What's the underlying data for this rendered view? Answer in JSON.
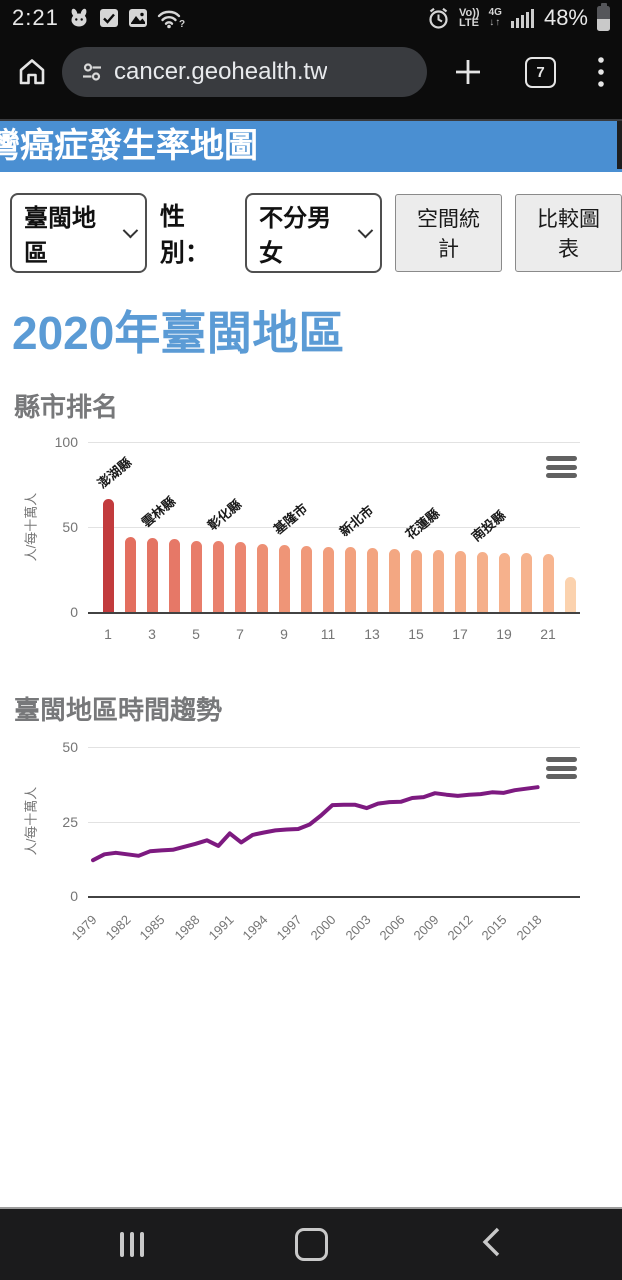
{
  "status_bar": {
    "time": "2:21",
    "icons_left": [
      "mascot-icon",
      "checkbox-icon",
      "gallery-icon",
      "wifi-question-icon"
    ],
    "icons_right": [
      "alarm-icon",
      "volte-icon",
      "network-arrows-icon",
      "signal-icon",
      "battery-icon"
    ],
    "volte_line1": "Vo))",
    "volte_line2": "LTE",
    "network": "4G",
    "network_arrows": "↓↑",
    "battery_percent": "48%"
  },
  "browser": {
    "url": "cancer.geohealth.tw",
    "tab_count": "7"
  },
  "site_header": {
    "title": "灣癌症發生率地圖"
  },
  "controls": {
    "region_select": "臺閩地區",
    "gender_label": "性別：",
    "gender_select": "不分男女",
    "spatial_stats_button": "空間統計",
    "comparison_chart_button": "比較圖表"
  },
  "main": {
    "page_title": "2020年臺閩地區",
    "ranking_section_title": "縣市排名",
    "trend_section_title": "臺閩地區時間趨勢"
  },
  "chart_data": [
    {
      "type": "bar",
      "title": "縣市排名",
      "ylabel": "人/每十萬人",
      "ylim": [
        0,
        100
      ],
      "yticks": [
        0,
        50,
        100
      ],
      "categories": [
        1,
        2,
        3,
        4,
        5,
        6,
        7,
        8,
        9,
        10,
        11,
        12,
        13,
        14,
        15,
        16,
        17,
        18,
        19,
        20,
        21,
        22
      ],
      "xticks": [
        1,
        3,
        5,
        7,
        9,
        11,
        13,
        15,
        17,
        19,
        21
      ],
      "values": [
        66.5,
        44,
        43.5,
        43,
        42,
        41.5,
        41,
        40,
        39.5,
        39,
        38.5,
        38,
        37.5,
        37,
        36.5,
        36.5,
        36,
        35.5,
        35,
        34.5,
        34,
        20.5
      ],
      "bar_colors": [
        "#c23b3d",
        "#e36f5f",
        "#e47463",
        "#e67867",
        "#e87d6a",
        "#e9816d",
        "#eb8670",
        "#ed8f74",
        "#ef9577",
        "#f0997a",
        "#f19d7c",
        "#f2a17e",
        "#f3a480",
        "#f3a782",
        "#f4a984",
        "#f4ab86",
        "#f5ad88",
        "#f5af8a",
        "#f6b18c",
        "#f6b38e",
        "#f7b590",
        "#fbd2ae"
      ],
      "annotations": [
        {
          "index": 1,
          "label": "澎湖縣"
        },
        {
          "index": 3,
          "label": "雲林縣"
        },
        {
          "index": 6,
          "label": "彰化縣"
        },
        {
          "index": 9,
          "label": "基隆市"
        },
        {
          "index": 12,
          "label": "新北市"
        },
        {
          "index": 15,
          "label": "花蓮縣"
        },
        {
          "index": 18,
          "label": "南投縣"
        }
      ],
      "grid": true,
      "legend": "none"
    },
    {
      "type": "line",
      "title": "臺閩地區時間趨勢",
      "ylabel": "人/每十萬人",
      "ylim": [
        0,
        50
      ],
      "yticks": [
        0,
        25,
        50
      ],
      "x": [
        1979,
        1980,
        1981,
        1982,
        1983,
        1984,
        1985,
        1986,
        1987,
        1988,
        1989,
        1990,
        1991,
        1992,
        1993,
        1994,
        1995,
        1996,
        1997,
        1998,
        1999,
        2000,
        2001,
        2002,
        2003,
        2004,
        2005,
        2006,
        2007,
        2008,
        2009,
        2010,
        2011,
        2012,
        2013,
        2014,
        2015,
        2016,
        2017,
        2018
      ],
      "xticks": [
        1979,
        1982,
        1985,
        1988,
        1991,
        1994,
        1997,
        2000,
        2003,
        2006,
        2009,
        2012,
        2015,
        2018
      ],
      "values": [
        12,
        14,
        14.5,
        14,
        13.5,
        15,
        15.3,
        15.5,
        16.5,
        17.5,
        18.7,
        16.8,
        21,
        18,
        20.5,
        21.3,
        22,
        22.3,
        22.5,
        24,
        27,
        30.5,
        30.6,
        30.6,
        29.5,
        31,
        31.5,
        31.6,
        32.9,
        33.2,
        34.5,
        34,
        33.6,
        34,
        34.2,
        34.8,
        34.6,
        35.5,
        36,
        36.5
      ],
      "line_color": "#7d1a80",
      "grid": true,
      "legend": "none"
    }
  ]
}
